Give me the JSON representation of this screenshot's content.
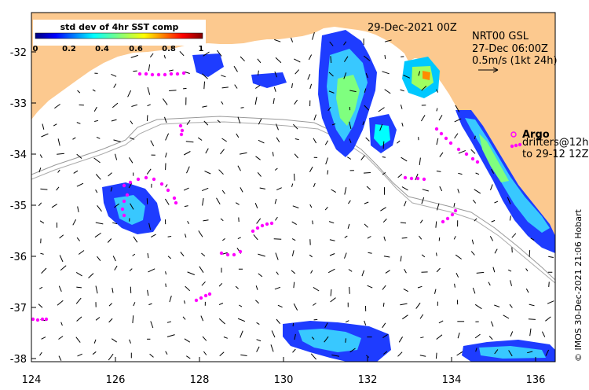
{
  "map": {
    "date_label": "29-Dec-2021 00Z",
    "product_label": "NRT00 GSL",
    "product_date": "27-Dec 06:00Z",
    "scale_label": "0.5m/s (1kt 24h)",
    "argo_label": "Argo",
    "drifters_label": "drifters@12h",
    "drifters_to_label": "to 29-12 12Z",
    "credit": "© IMOS 30-Dec-2021 21:06 Hobart",
    "colorbar": {
      "title": "std dev of 4hr SST comp",
      "ticks": [
        "0",
        "0.2",
        "0.4",
        "0.6",
        "0.8",
        "1"
      ]
    },
    "x_ticks": [
      "124",
      "126",
      "128",
      "130",
      "132",
      "134",
      "136"
    ],
    "y_ticks": [
      "-32",
      "-33",
      "-34",
      "-35",
      "-36",
      "-37",
      "-38"
    ],
    "colors": {
      "land": "#fcc98f",
      "argo_magenta": "#ff00ff",
      "bathy_line": "#999999"
    },
    "extent": {
      "lon": [
        124,
        136.5
      ],
      "lat": [
        -38.1,
        -31.3
      ]
    }
  }
}
